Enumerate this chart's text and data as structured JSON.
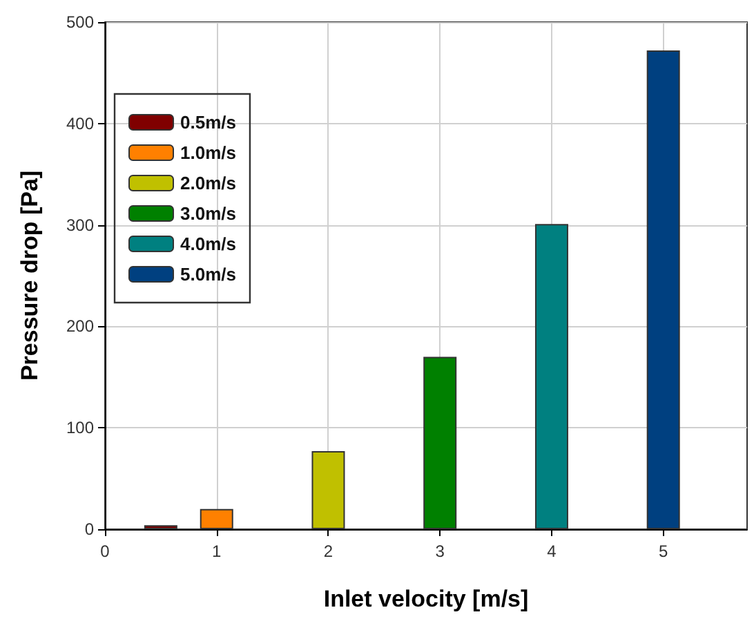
{
  "chart_data": {
    "type": "bar",
    "xlabel": "Inlet velocity [m/s]",
    "ylabel": "Pressure drop [Pa]",
    "series": [
      {
        "name": "0.5m/s",
        "color": "#800000",
        "x": [
          0.5
        ],
        "values": [
          4
        ]
      },
      {
        "name": "1.0m/s",
        "color": "#ff8000",
        "x": [
          1
        ],
        "values": [
          20
        ]
      },
      {
        "name": "2.0m/s",
        "color": "#c0c000",
        "x": [
          2
        ],
        "values": [
          77
        ]
      },
      {
        "name": "3.0m/s",
        "color": "#008000",
        "x": [
          3
        ],
        "values": [
          170
        ]
      },
      {
        "name": "4.0m/s",
        "color": "#008080",
        "x": [
          4
        ],
        "values": [
          301
        ]
      },
      {
        "name": "5.0m/s",
        "color": "#004080",
        "x": [
          5
        ],
        "values": [
          472
        ]
      }
    ],
    "xlim": [
      0,
      5.75
    ],
    "xticks": [
      0,
      1,
      2,
      3,
      4,
      5
    ],
    "ylim": [
      0,
      500
    ],
    "yticks": [
      0,
      100,
      200,
      300,
      400,
      500
    ],
    "grid": true,
    "legend": "top left"
  }
}
